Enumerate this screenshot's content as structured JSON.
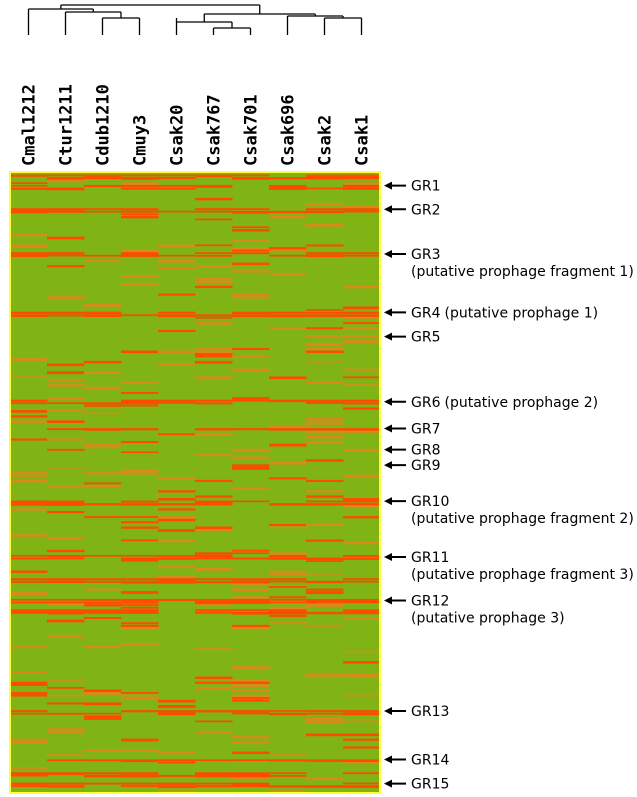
{
  "chart_data": {
    "type": "heatmap",
    "title": "",
    "xlabel": "",
    "ylabel": "",
    "columns": [
      "Cmal1212",
      "Ctur1211",
      "Cdub1210",
      "Cmuy3",
      "Csak20",
      "Csak767",
      "Csak701",
      "Csak696",
      "Csak2",
      "Csak1"
    ],
    "colors": {
      "absent": "#7fb414",
      "present": "#ff4a00",
      "intermediate": "#d98a1a",
      "frame": "#ffff33"
    },
    "groups": [
      {
        "label": "GR1",
        "note": "",
        "row_fraction": 0.022
      },
      {
        "label": "GR2",
        "note": "",
        "row_fraction": 0.06
      },
      {
        "label": "GR3",
        "note": "(putative prophage fragment 1)",
        "row_fraction": 0.132
      },
      {
        "label": "GR4",
        "note": "(putative prophage 1)",
        "row_fraction": 0.226
      },
      {
        "label": "GR5",
        "note": "",
        "row_fraction": 0.265
      },
      {
        "label": "GR6",
        "note": "(putative prophage 2)",
        "row_fraction": 0.37
      },
      {
        "label": "GR7",
        "note": "",
        "row_fraction": 0.413
      },
      {
        "label": "GR8",
        "note": "",
        "row_fraction": 0.447
      },
      {
        "label": "GR9",
        "note": "",
        "row_fraction": 0.472
      },
      {
        "label": "GR10",
        "note": "(putative prophage fragment 2)",
        "row_fraction": 0.53
      },
      {
        "label": "GR11",
        "note": "(putative prophage fragment 3)",
        "row_fraction": 0.62
      },
      {
        "label": "GR12",
        "note": "(putative prophage 3)",
        "row_fraction": 0.69
      },
      {
        "label": "GR13",
        "note": "",
        "row_fraction": 0.868
      },
      {
        "label": "GR14",
        "note": "",
        "row_fraction": 0.946
      },
      {
        "label": "GR15",
        "note": "",
        "row_fraction": 0.985
      }
    ]
  }
}
